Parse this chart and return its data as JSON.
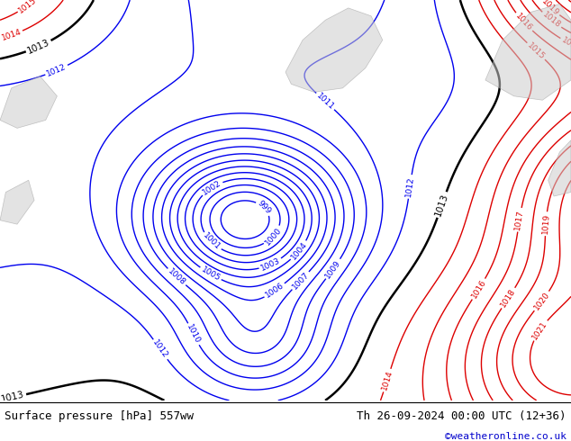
{
  "title_left": "Surface pressure [hPa] 557ww",
  "title_right": "Th 26-09-2024 00:00 UTC (12+36)",
  "credit": "©weatheronline.co.uk",
  "bg_color": "#b5d98a",
  "bottom_bar_color": "#ffffff",
  "bottom_text_color": "#000000",
  "credit_color": "#0000cc",
  "contour_blue_color": "#0000ee",
  "contour_black_color": "#000000",
  "contour_red_color": "#dd0000",
  "fig_width": 6.34,
  "fig_height": 4.9,
  "dpi": 100
}
